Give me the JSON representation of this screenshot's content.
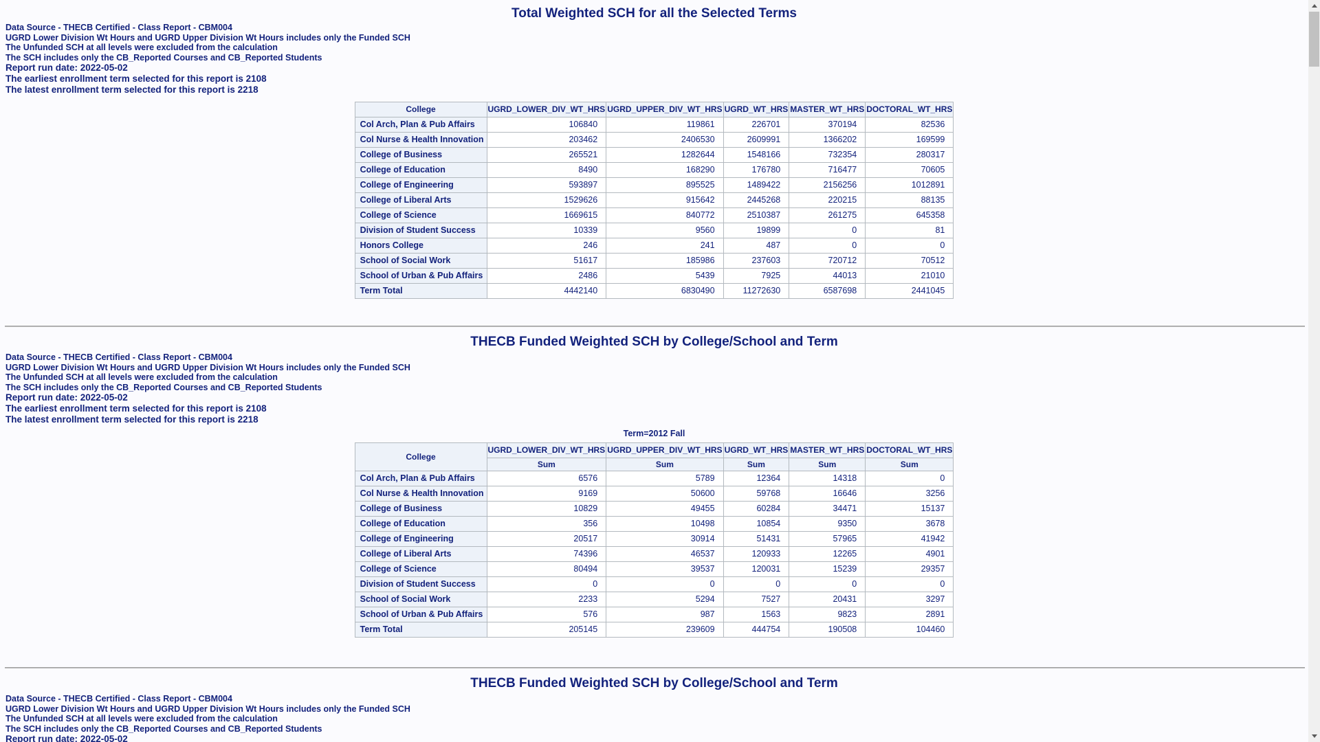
{
  "colors": {
    "text_navy": "#13227c",
    "table_header_bg": "#edf2f9",
    "table_border": "#b3b9bf",
    "page_background": "#fbfbfe"
  },
  "notes": [
    "Data Source - THECB Certified - Class Report - CBM004",
    "UGRD Lower Division Wt Hours and UGRD Upper Division Wt Hours includes only the Funded SCH",
    "The Unfunded SCH at all levels were excluded from the calculation",
    "The SCH includes only the CB_Reported Courses and CB_Reported Students",
    "Report run date: 2022-05-02",
    "The earliest enrollment term selected for this report is 2108",
    "The latest enrollment term selected for this report is 2218"
  ],
  "section1": {
    "title": "Total Weighted SCH for all the Selected Terms"
  },
  "section2": {
    "title": "THECB Funded Weighted SCH by College/School and Term",
    "caption": "Term=2012 Fall"
  },
  "section3": {
    "title": "THECB Funded Weighted SCH by College/School and Term"
  },
  "table1": {
    "columns": [
      "College",
      "UGRD_LOWER_DIV_WT_HRS",
      "UGRD_UPPER_DIV_WT_HRS",
      "UGRD_WT_HRS",
      "MASTER_WT_HRS",
      "DOCTORAL_WT_HRS"
    ],
    "rows": [
      {
        "college": "Col Arch, Plan & Pub Affairs",
        "values": [
          "106840",
          "119861",
          "226701",
          "370194",
          "82536"
        ]
      },
      {
        "college": "Col Nurse & Health Innovation",
        "values": [
          "203462",
          "2406530",
          "2609991",
          "1366202",
          "169599"
        ]
      },
      {
        "college": "College of Business",
        "values": [
          "265521",
          "1282644",
          "1548166",
          "732354",
          "280317"
        ]
      },
      {
        "college": "College of Education",
        "values": [
          "8490",
          "168290",
          "176780",
          "716477",
          "70605"
        ]
      },
      {
        "college": "College of Engineering",
        "values": [
          "593897",
          "895525",
          "1489422",
          "2156256",
          "1012891"
        ]
      },
      {
        "college": "College of Liberal Arts",
        "values": [
          "1529626",
          "915642",
          "2445268",
          "220215",
          "88135"
        ]
      },
      {
        "college": "College of Science",
        "values": [
          "1669615",
          "840772",
          "2510387",
          "261275",
          "645358"
        ]
      },
      {
        "college": "Division of Student Success",
        "values": [
          "10339",
          "9560",
          "19899",
          "0",
          "81"
        ]
      },
      {
        "college": "Honors College",
        "values": [
          "246",
          "241",
          "487",
          "0",
          "0"
        ]
      },
      {
        "college": "School of Social Work",
        "values": [
          "51617",
          "185986",
          "237603",
          "720712",
          "70512"
        ]
      },
      {
        "college": "School of Urban & Pub Affairs",
        "values": [
          "2486",
          "5439",
          "7925",
          "44013",
          "21010"
        ]
      },
      {
        "college": "Term Total",
        "values": [
          "4442140",
          "6830490",
          "11272630",
          "6587698",
          "2441045"
        ]
      }
    ]
  },
  "table2": {
    "columns": [
      "College",
      "UGRD_LOWER_DIV_WT_HRS",
      "UGRD_UPPER_DIV_WT_HRS",
      "UGRD_WT_HRS",
      "MASTER_WT_HRS",
      "DOCTORAL_WT_HRS"
    ],
    "subheader": "Sum",
    "rows": [
      {
        "college": "Col Arch, Plan & Pub Affairs",
        "values": [
          "6576",
          "5789",
          "12364",
          "14318",
          "0"
        ]
      },
      {
        "college": "Col Nurse & Health Innovation",
        "values": [
          "9169",
          "50600",
          "59768",
          "16646",
          "3256"
        ]
      },
      {
        "college": "College of Business",
        "values": [
          "10829",
          "49455",
          "60284",
          "34471",
          "15137"
        ]
      },
      {
        "college": "College of Education",
        "values": [
          "356",
          "10498",
          "10854",
          "9350",
          "3678"
        ]
      },
      {
        "college": "College of Engineering",
        "values": [
          "20517",
          "30914",
          "51431",
          "57965",
          "41942"
        ]
      },
      {
        "college": "College of Liberal Arts",
        "values": [
          "74396",
          "46537",
          "120933",
          "12265",
          "4901"
        ]
      },
      {
        "college": "College of Science",
        "values": [
          "80494",
          "39537",
          "120031",
          "15239",
          "29357"
        ]
      },
      {
        "college": "Division of Student Success",
        "values": [
          "0",
          "0",
          "0",
          "0",
          "0"
        ]
      },
      {
        "college": "School of Social Work",
        "values": [
          "2233",
          "5294",
          "7527",
          "20431",
          "3297"
        ]
      },
      {
        "college": "School of Urban & Pub Affairs",
        "values": [
          "576",
          "987",
          "1563",
          "9823",
          "2891"
        ]
      },
      {
        "college": "Term Total",
        "values": [
          "205145",
          "239609",
          "444754",
          "190508",
          "104460"
        ]
      }
    ]
  }
}
